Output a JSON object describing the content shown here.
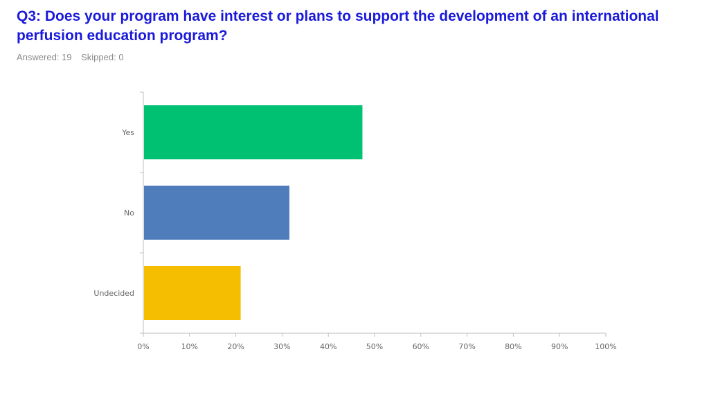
{
  "page": {
    "title": "Q3: Does your program have interest or plans to support the development of an international perfusion education program?",
    "answered": "Answered: 19",
    "skipped": "Skipped: 0"
  },
  "chart_data": {
    "type": "bar",
    "orientation": "horizontal",
    "categories": [
      "Yes",
      "No",
      "Undecided"
    ],
    "values": [
      47.37,
      31.58,
      21.05
    ],
    "colors": [
      "#00c071",
      "#4f7cba",
      "#f6be00"
    ],
    "xlim": [
      0,
      100
    ],
    "xticks": [
      "0%",
      "10%",
      "20%",
      "30%",
      "40%",
      "50%",
      "60%",
      "70%",
      "80%",
      "90%",
      "100%"
    ],
    "grid": false,
    "legend": "none"
  }
}
